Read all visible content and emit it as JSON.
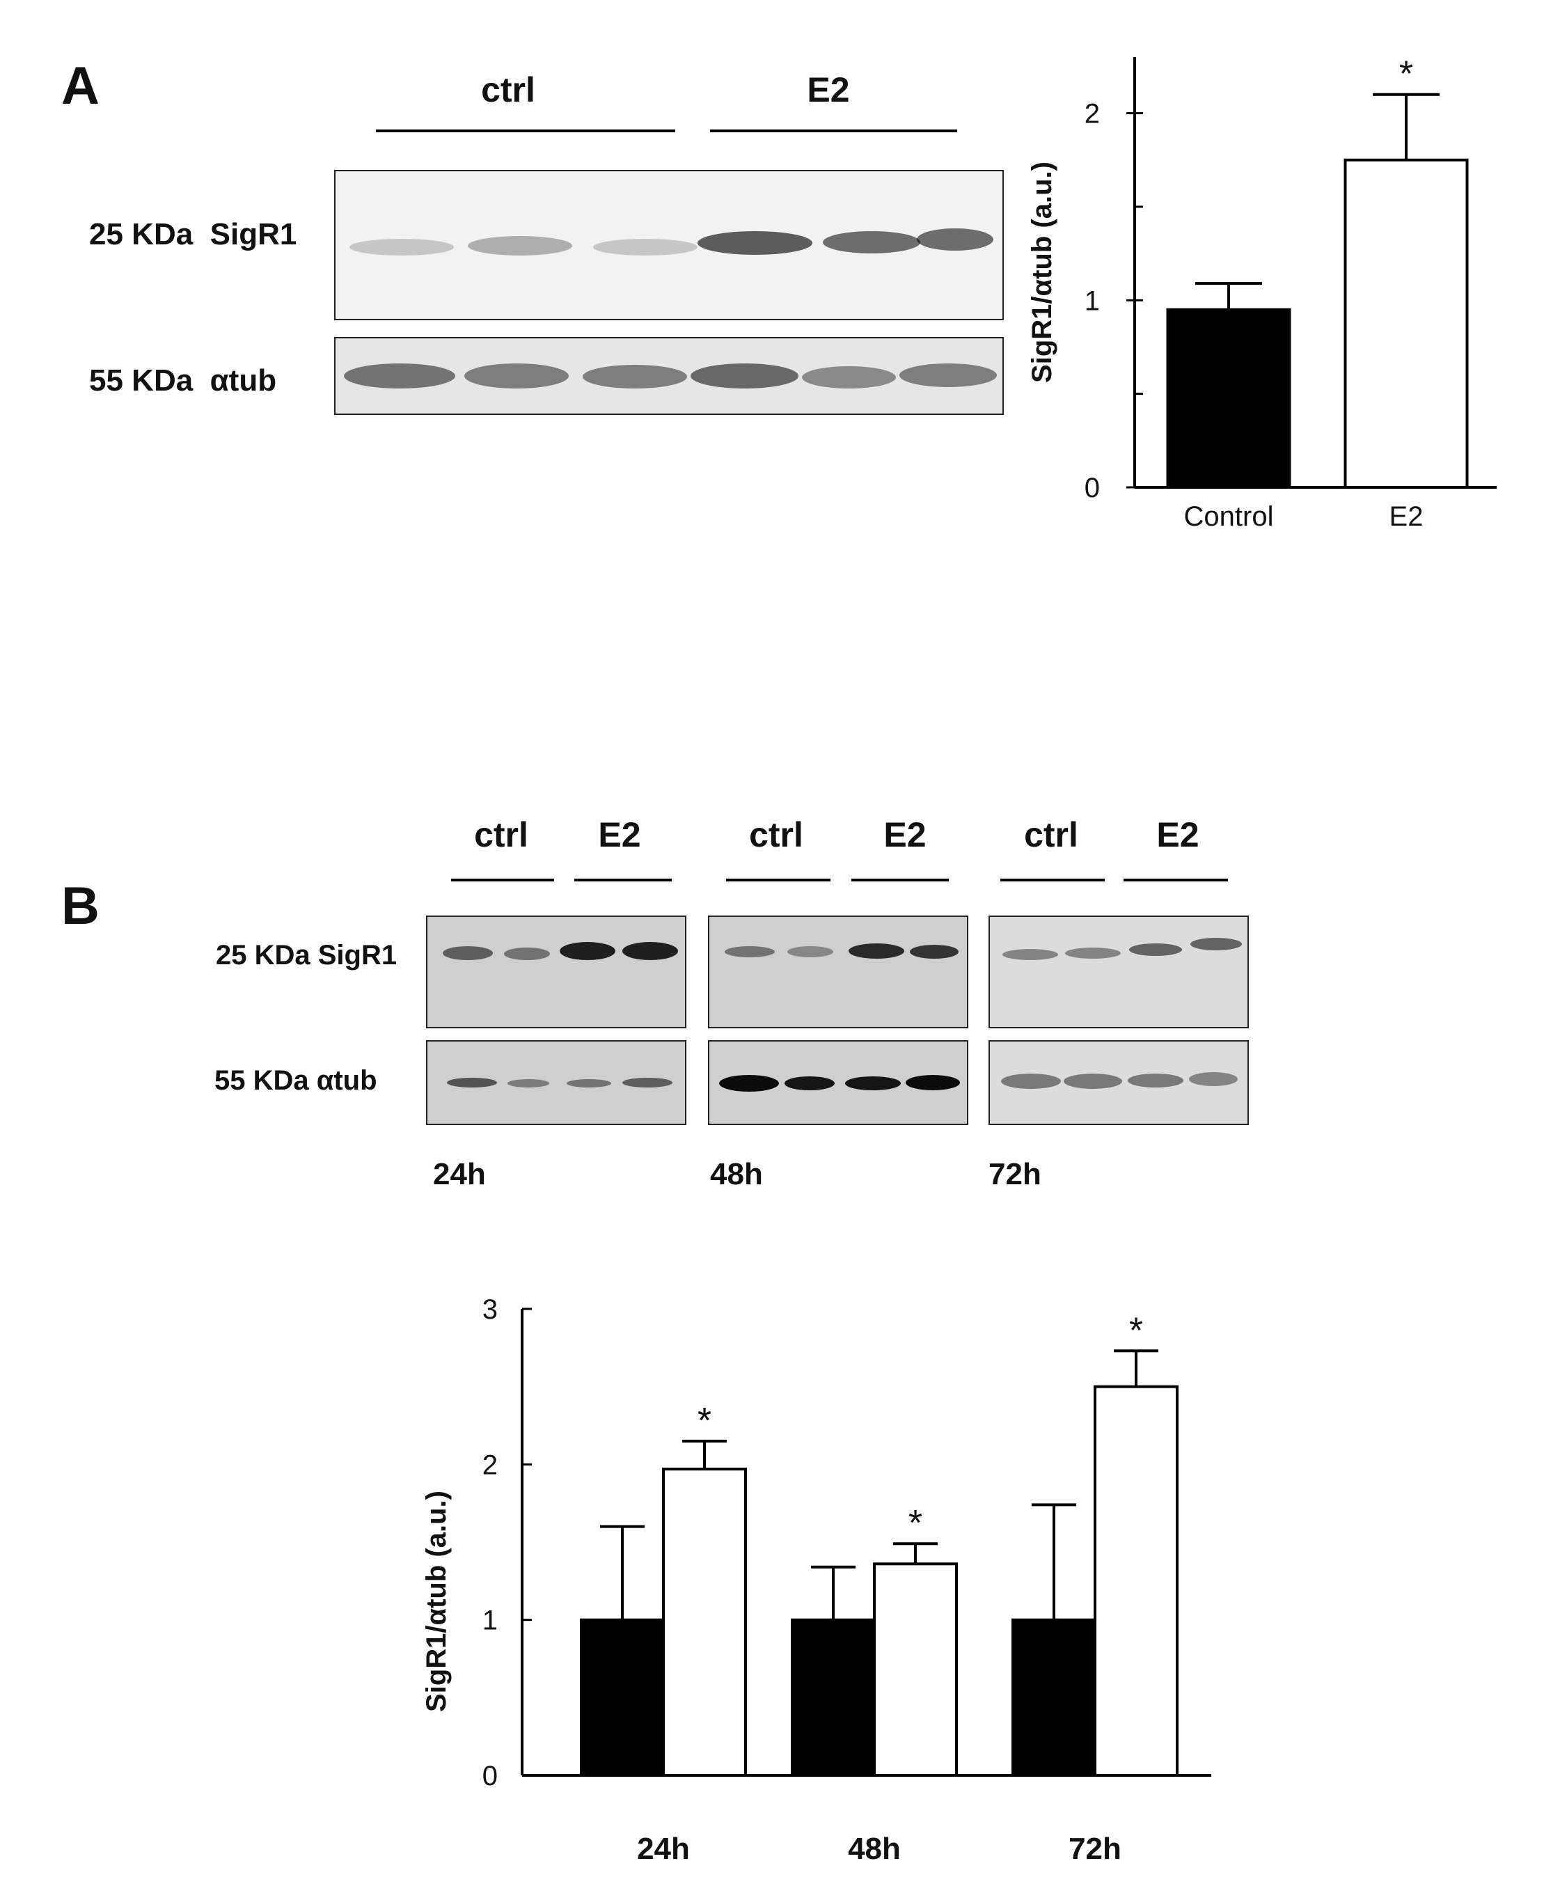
{
  "panelA": {
    "letter": "A",
    "groups": [
      "ctrl",
      "E2"
    ],
    "blot_labels": {
      "sigr1": "25 KDa  SigR1",
      "tub": "55 KDa  αtub"
    },
    "chart_data": {
      "type": "bar",
      "categories": [
        "Control",
        "E2"
      ],
      "series": [
        {
          "values": [
            0.95,
            1.75
          ],
          "errors": [
            0.14,
            0.35
          ],
          "colors": [
            "#000000",
            "#ffffff"
          ]
        }
      ],
      "significance": [
        "",
        "*"
      ],
      "ylabel": "SigR1/αtub (a.u.)",
      "ylim": [
        0,
        2.3
      ],
      "yticks": [
        0,
        1,
        2
      ],
      "ytick_labels": [
        "0",
        "1",
        "2"
      ],
      "minor_tick_step": 0.5,
      "grid": false
    }
  },
  "panelB": {
    "letter": "B",
    "blocks": [
      {
        "groups": [
          "ctrl",
          "E2"
        ],
        "time": "24h"
      },
      {
        "groups": [
          "ctrl",
          "E2"
        ],
        "time": "48h"
      },
      {
        "groups": [
          "ctrl",
          "E2"
        ],
        "time": "72h"
      }
    ],
    "blot_labels": {
      "sigr1": "25 KDa SigR1",
      "tub": "55 KDa αtub"
    },
    "chart_data": {
      "type": "bar",
      "categories": [
        "24h",
        "48h",
        "72h"
      ],
      "series": [
        {
          "color": "#000000",
          "values": [
            1.0,
            1.0,
            1.0
          ],
          "errors": [
            0.6,
            0.34,
            0.74
          ]
        },
        {
          "color": "#ffffff",
          "values": [
            1.97,
            1.36,
            2.5
          ],
          "errors": [
            0.18,
            0.13,
            0.23
          ]
        }
      ],
      "significance": [
        "*",
        "*",
        "*"
      ],
      "ylabel": "SigR1/αtub (a.u.)",
      "ylim": [
        0,
        3
      ],
      "yticks": [
        0,
        1,
        2,
        3
      ],
      "ytick_labels": [
        "0",
        "1",
        "2",
        "3"
      ],
      "grid": false
    }
  }
}
